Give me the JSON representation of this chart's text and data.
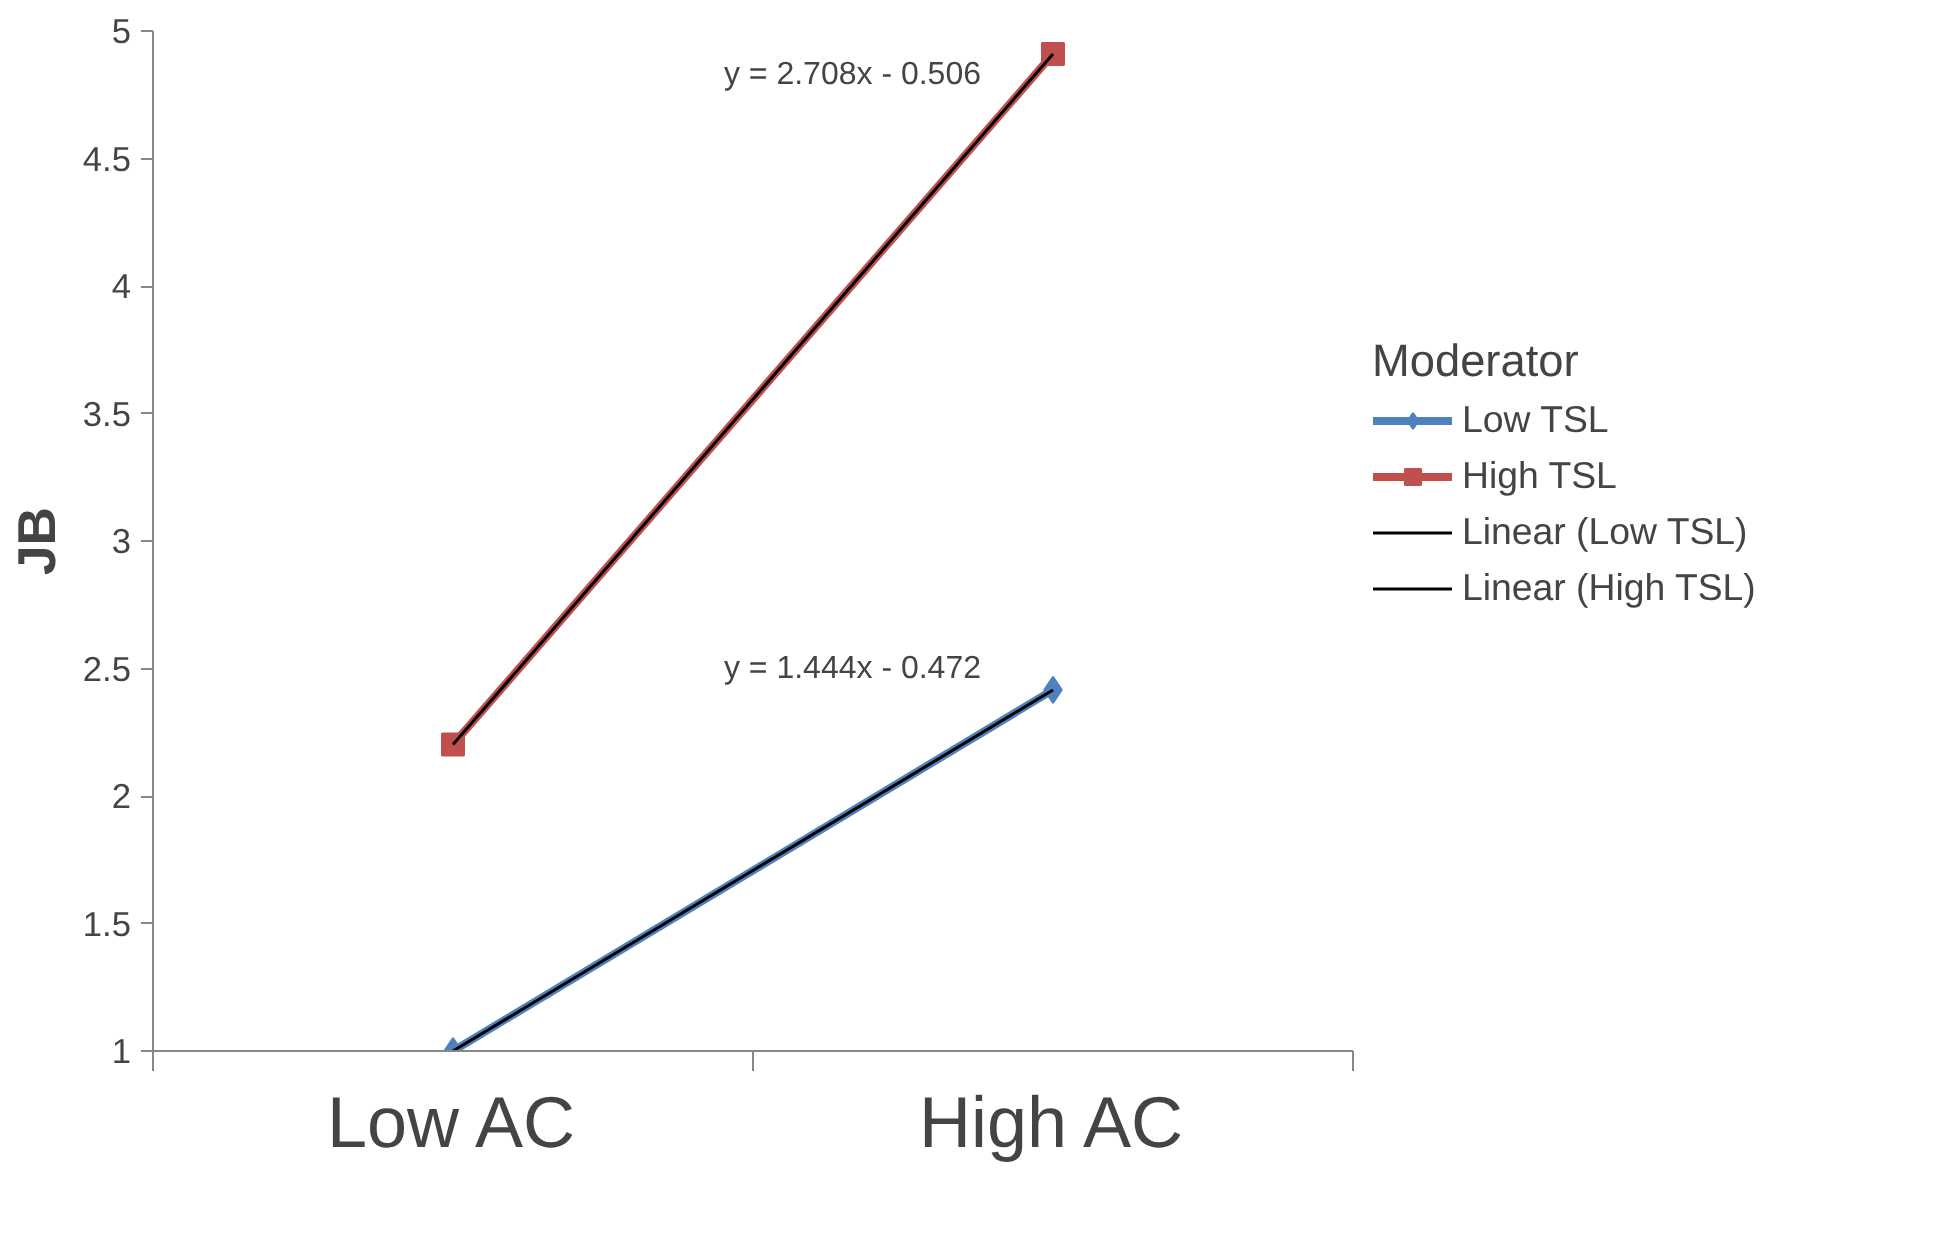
{
  "chart_data": {
    "type": "line",
    "categories": [
      "Low AC",
      "High AC"
    ],
    "ylabel": "JB",
    "legend_title": "Moderator",
    "legend": "right",
    "grid": false,
    "ylim": [
      1,
      5
    ],
    "yticks": [
      1,
      1.5,
      2,
      2.5,
      3,
      3.5,
      4,
      4.5,
      5
    ],
    "series": [
      {
        "name": "Low TSL",
        "color": "#4f81bd",
        "values": [
          1.0,
          2.416
        ],
        "marker": "diamond"
      },
      {
        "name": "High TSL",
        "color": "#c0504d",
        "values": [
          2.202,
          4.91
        ],
        "marker": "square"
      },
      {
        "name": "Linear (Low TSL)",
        "color": "#000000",
        "values": [
          1.0,
          2.416
        ],
        "x": [
          "Low AC",
          "High AC"
        ],
        "marker": "none"
      },
      {
        "name": "Linear (High TSL)",
        "color": "#000000",
        "values": [
          2.202,
          4.91
        ],
        "x": [
          "Low AC",
          "High AC"
        ],
        "marker": "none"
      }
    ],
    "annotations": [
      {
        "text": "y = 2.708x - 0.506",
        "x": "High AC",
        "y": 4.91
      },
      {
        "text": "y = 1.444x - 0.472",
        "x": "High AC",
        "y": 2.416
      }
    ]
  }
}
